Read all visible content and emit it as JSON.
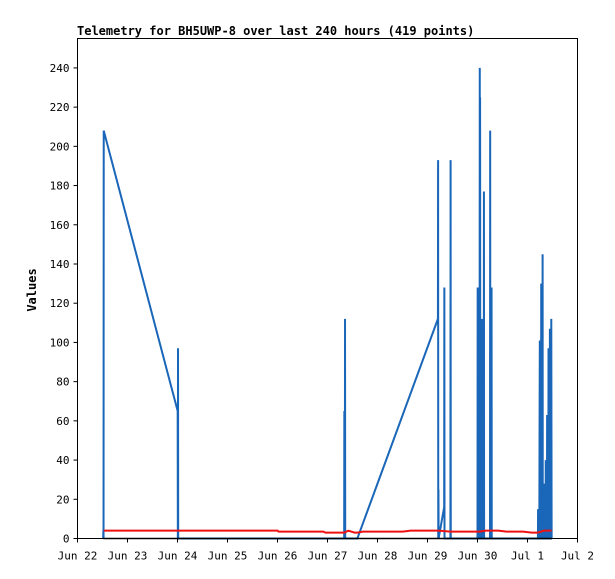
{
  "chart_data": {
    "type": "line",
    "title": "Telemetry for BH5UWP-8 over last 240 hours (419 points)",
    "xlabel": "",
    "ylabel": "Values",
    "ylim": [
      0,
      255
    ],
    "xlim": [
      "2025-06-22T00:00",
      "2025-07-02T00:00"
    ],
    "x_tick_labels": [
      "Jun 22",
      "Jun 23",
      "Jun 24",
      "Jun 25",
      "Jun 26",
      "Jun 27",
      "Jun 28",
      "Jun 29",
      "Jun 30",
      "Jul 1",
      "Jul 2"
    ],
    "y_ticks": [
      0,
      20,
      40,
      60,
      80,
      100,
      120,
      140,
      160,
      180,
      200,
      220,
      240
    ],
    "grid": false,
    "legend": "none",
    "series": [
      {
        "color": "#1a66b8",
        "points": [
          [
            "2025-06-22T12:20",
            0
          ],
          [
            "2025-06-22T12:25",
            4
          ],
          [
            "2025-06-22T12:30",
            0
          ],
          [
            "2025-06-22T12:35",
            208
          ],
          [
            "2025-06-24T00:05",
            65
          ],
          [
            "2025-06-24T00:10",
            0
          ],
          [
            "2025-06-24T00:15",
            97
          ],
          [
            "2025-06-24T00:20",
            0
          ],
          [
            "2025-06-27T08:00",
            0
          ],
          [
            "2025-06-27T08:05",
            65
          ],
          [
            "2025-06-27T08:10",
            0
          ],
          [
            "2025-06-27T08:20",
            0
          ],
          [
            "2025-06-27T08:25",
            112
          ],
          [
            "2025-06-27T08:30",
            0
          ],
          [
            "2025-06-27T14:20",
            0
          ],
          [
            "2025-06-29T05:00",
            112
          ],
          [
            "2025-06-29T05:05",
            193
          ],
          [
            "2025-06-29T05:10",
            0
          ],
          [
            "2025-06-29T05:15",
            25
          ],
          [
            "2025-06-29T05:20",
            0
          ],
          [
            "2025-06-29T08:00",
            16
          ],
          [
            "2025-06-29T08:05",
            128
          ],
          [
            "2025-06-29T08:10",
            0
          ],
          [
            "2025-06-29T11:00",
            0
          ],
          [
            "2025-06-29T11:05",
            193
          ],
          [
            "2025-06-29T11:10",
            0
          ],
          [
            "2025-06-30T00:00",
            0
          ],
          [
            "2025-06-30T00:05",
            128
          ],
          [
            "2025-06-30T00:10",
            0
          ],
          [
            "2025-06-30T01:00",
            0
          ],
          [
            "2025-06-30T01:05",
            240
          ],
          [
            "2025-06-30T01:10",
            30
          ],
          [
            "2025-06-30T01:15",
            225
          ],
          [
            "2025-06-30T01:20",
            0
          ],
          [
            "2025-06-30T02:00",
            0
          ],
          [
            "2025-06-30T02:05",
            112
          ],
          [
            "2025-06-30T02:10",
            0
          ],
          [
            "2025-06-30T03:00",
            0
          ],
          [
            "2025-06-30T03:05",
            177
          ],
          [
            "2025-06-30T03:10",
            0
          ],
          [
            "2025-06-30T06:00",
            0
          ],
          [
            "2025-06-30T06:05",
            208
          ],
          [
            "2025-06-30T06:10",
            0
          ],
          [
            "2025-06-30T06:40",
            0
          ],
          [
            "2025-06-30T06:45",
            128
          ],
          [
            "2025-06-30T06:50",
            0
          ],
          [
            "2025-07-01T05:00",
            0
          ],
          [
            "2025-07-01T05:05",
            15
          ],
          [
            "2025-07-01T05:10",
            0
          ],
          [
            "2025-07-01T05:40",
            0
          ],
          [
            "2025-07-01T05:45",
            40
          ],
          [
            "2025-07-01T05:50",
            72
          ],
          [
            "2025-07-01T05:55",
            101
          ],
          [
            "2025-07-01T06:00",
            0
          ],
          [
            "2025-07-01T06:30",
            0
          ],
          [
            "2025-07-01T06:35",
            130
          ],
          [
            "2025-07-01T06:40",
            0
          ],
          [
            "2025-07-01T07:10",
            0
          ],
          [
            "2025-07-01T07:15",
            145
          ],
          [
            "2025-07-01T07:20",
            0
          ],
          [
            "2025-07-01T08:00",
            0
          ],
          [
            "2025-07-01T08:05",
            28
          ],
          [
            "2025-07-01T08:10",
            0
          ],
          [
            "2025-07-01T08:40",
            0
          ],
          [
            "2025-07-01T08:45",
            40
          ],
          [
            "2025-07-01T08:50",
            0
          ],
          [
            "2025-07-01T09:20",
            0
          ],
          [
            "2025-07-01T09:25",
            63
          ],
          [
            "2025-07-01T09:30",
            0
          ],
          [
            "2025-07-01T10:00",
            0
          ],
          [
            "2025-07-01T10:05",
            97
          ],
          [
            "2025-07-01T10:10",
            0
          ],
          [
            "2025-07-01T10:40",
            0
          ],
          [
            "2025-07-01T10:45",
            107
          ],
          [
            "2025-07-01T10:50",
            0
          ],
          [
            "2025-07-01T11:20",
            0
          ],
          [
            "2025-07-01T11:25",
            112
          ],
          [
            "2025-07-01T11:30",
            56
          ],
          [
            "2025-07-01T11:35",
            0
          ]
        ]
      },
      {
        "color": "#ee1111",
        "points": [
          [
            "2025-06-22T12:35",
            4
          ],
          [
            "2025-06-24T00:05",
            4
          ],
          [
            "2025-06-25T00:00",
            4
          ],
          [
            "2025-06-26T00:00",
            4
          ],
          [
            "2025-06-26T00:30",
            3.5
          ],
          [
            "2025-06-26T22:00",
            3.5
          ],
          [
            "2025-06-26T23:00",
            3
          ],
          [
            "2025-06-27T08:00",
            3
          ],
          [
            "2025-06-27T10:00",
            4
          ],
          [
            "2025-06-27T13:00",
            3
          ],
          [
            "2025-06-27T14:20",
            3
          ],
          [
            "2025-06-27T17:00",
            3.5
          ],
          [
            "2025-06-28T00:00",
            3.5
          ],
          [
            "2025-06-28T12:00",
            3.5
          ],
          [
            "2025-06-28T16:00",
            4
          ],
          [
            "2025-06-29T05:00",
            4
          ],
          [
            "2025-06-29T11:00",
            3.5
          ],
          [
            "2025-06-29T23:00",
            3.5
          ],
          [
            "2025-06-30T01:00",
            3.5
          ],
          [
            "2025-06-30T04:00",
            4
          ],
          [
            "2025-06-30T10:00",
            4
          ],
          [
            "2025-06-30T14:00",
            3.5
          ],
          [
            "2025-06-30T22:00",
            3.5
          ],
          [
            "2025-07-01T02:00",
            3
          ],
          [
            "2025-07-01T05:00",
            3
          ],
          [
            "2025-07-01T08:00",
            4
          ],
          [
            "2025-07-01T11:35",
            4
          ]
        ]
      },
      {
        "color": "#000000",
        "points": [
          [
            "2025-06-22T12:20",
            0
          ],
          [
            "2025-07-01T11:35",
            0
          ]
        ]
      }
    ]
  }
}
